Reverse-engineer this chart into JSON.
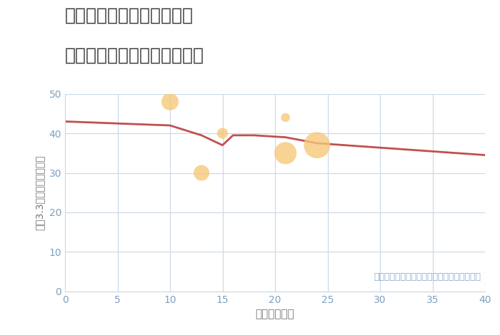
{
  "title_line1": "埼玉県南埼玉郡宮代町西原",
  "title_line2": "築年数別中古マンション価格",
  "xlabel": "築年数（年）",
  "ylabel": "平（3.3㎡）単価（万円）",
  "annotation": "円の大きさは、取引のあった物件面積を示す",
  "xlim": [
    0,
    40
  ],
  "ylim": [
    0,
    50
  ],
  "xticks": [
    0,
    5,
    10,
    15,
    20,
    25,
    30,
    35,
    40
  ],
  "yticks": [
    0,
    10,
    20,
    30,
    40,
    50
  ],
  "scatter_x": [
    10,
    13,
    15,
    21,
    21,
    24
  ],
  "scatter_y": [
    48,
    30,
    40,
    44,
    35,
    37
  ],
  "scatter_sizes": [
    300,
    250,
    120,
    80,
    500,
    700
  ],
  "scatter_color": "#f5c87a",
  "scatter_alpha": 0.8,
  "line_x": [
    0,
    10,
    13,
    15,
    16,
    18,
    21,
    24,
    40
  ],
  "line_y": [
    43,
    42,
    39.5,
    37,
    39.5,
    39.5,
    39,
    37.5,
    34.5
  ],
  "trend_color": "#c0504d",
  "trend_linewidth": 2.0,
  "bg_color": "#ffffff",
  "grid_color": "#c8d8e8",
  "title_color": "#333333",
  "title_fontsize": 18,
  "axis_label_color": "#777777",
  "tick_color": "#7fa0c0",
  "annotation_color": "#8aadcc",
  "annotation_fontsize": 9
}
